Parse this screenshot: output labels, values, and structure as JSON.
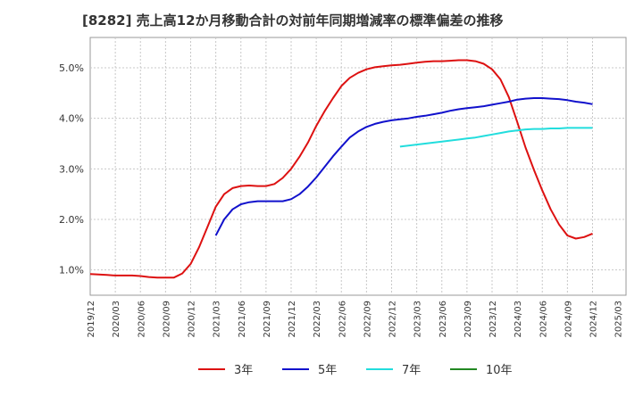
{
  "chart_data": {
    "type": "line",
    "title": "[8282]  売上高12か月移動合計の対前年同期増減率の標準偏差の推移",
    "xlabel": "",
    "ylabel": "",
    "ylim": [
      0.5,
      5.6
    ],
    "y_ticks": [
      1.0,
      2.0,
      3.0,
      4.0,
      5.0
    ],
    "y_tick_labels": [
      "1.0%",
      "2.0%",
      "3.0%",
      "4.0%",
      "5.0%"
    ],
    "x_tick_labels": [
      "2019/12",
      "2020/03",
      "2020/06",
      "2020/09",
      "2020/12",
      "2021/03",
      "2021/06",
      "2021/09",
      "2021/12",
      "2022/03",
      "2022/06",
      "2022/09",
      "2022/12",
      "2023/03",
      "2023/06",
      "2023/09",
      "2023/12",
      "2024/03",
      "2024/06",
      "2024/09",
      "2024/12",
      "2025/03"
    ],
    "grid": true,
    "legend_position": "bottom",
    "series": [
      {
        "name": "3年",
        "color": "#dd1111",
        "values": [
          0.92,
          0.91,
          0.9,
          0.89,
          0.89,
          0.89,
          0.88,
          0.86,
          0.85,
          0.85,
          0.85,
          0.93,
          1.12,
          1.45,
          1.85,
          2.25,
          2.5,
          2.62,
          2.66,
          2.67,
          2.66,
          2.66,
          2.7,
          2.82,
          3.0,
          3.24,
          3.52,
          3.85,
          4.14,
          4.4,
          4.64,
          4.8,
          4.9,
          4.97,
          5.01,
          5.03,
          5.05,
          5.06,
          5.08,
          5.1,
          5.12,
          5.13,
          5.13,
          5.14,
          5.15,
          5.15,
          5.13,
          5.08,
          4.97,
          4.77,
          4.42,
          3.93,
          3.42,
          2.98,
          2.57,
          2.2,
          1.9,
          1.68,
          1.62,
          1.65,
          1.72
        ]
      },
      {
        "name": "5年",
        "color": "#1111cc",
        "values": [
          null,
          null,
          null,
          null,
          null,
          null,
          null,
          null,
          null,
          null,
          null,
          null,
          null,
          null,
          null,
          1.68,
          2.0,
          2.2,
          2.3,
          2.34,
          2.36,
          2.36,
          2.36,
          2.36,
          2.4,
          2.5,
          2.65,
          2.83,
          3.04,
          3.25,
          3.44,
          3.62,
          3.74,
          3.83,
          3.89,
          3.93,
          3.96,
          3.98,
          4.0,
          4.03,
          4.05,
          4.08,
          4.11,
          4.15,
          4.18,
          4.2,
          4.22,
          4.24,
          4.27,
          4.3,
          4.33,
          4.37,
          4.39,
          4.4,
          4.4,
          4.39,
          4.38,
          4.36,
          4.33,
          4.31,
          4.28
        ]
      },
      {
        "name": "7年",
        "color": "#22dddd",
        "values": [
          null,
          null,
          null,
          null,
          null,
          null,
          null,
          null,
          null,
          null,
          null,
          null,
          null,
          null,
          null,
          null,
          null,
          null,
          null,
          null,
          null,
          null,
          null,
          null,
          null,
          null,
          null,
          null,
          null,
          null,
          null,
          null,
          null,
          null,
          null,
          null,
          null,
          3.44,
          3.46,
          3.48,
          3.5,
          3.52,
          3.54,
          3.56,
          3.58,
          3.6,
          3.62,
          3.65,
          3.68,
          3.71,
          3.74,
          3.76,
          3.78,
          3.79,
          3.79,
          3.8,
          3.8,
          3.81,
          3.81,
          3.81,
          3.81
        ]
      },
      {
        "name": "10年",
        "color": "#228822",
        "values": []
      }
    ]
  }
}
